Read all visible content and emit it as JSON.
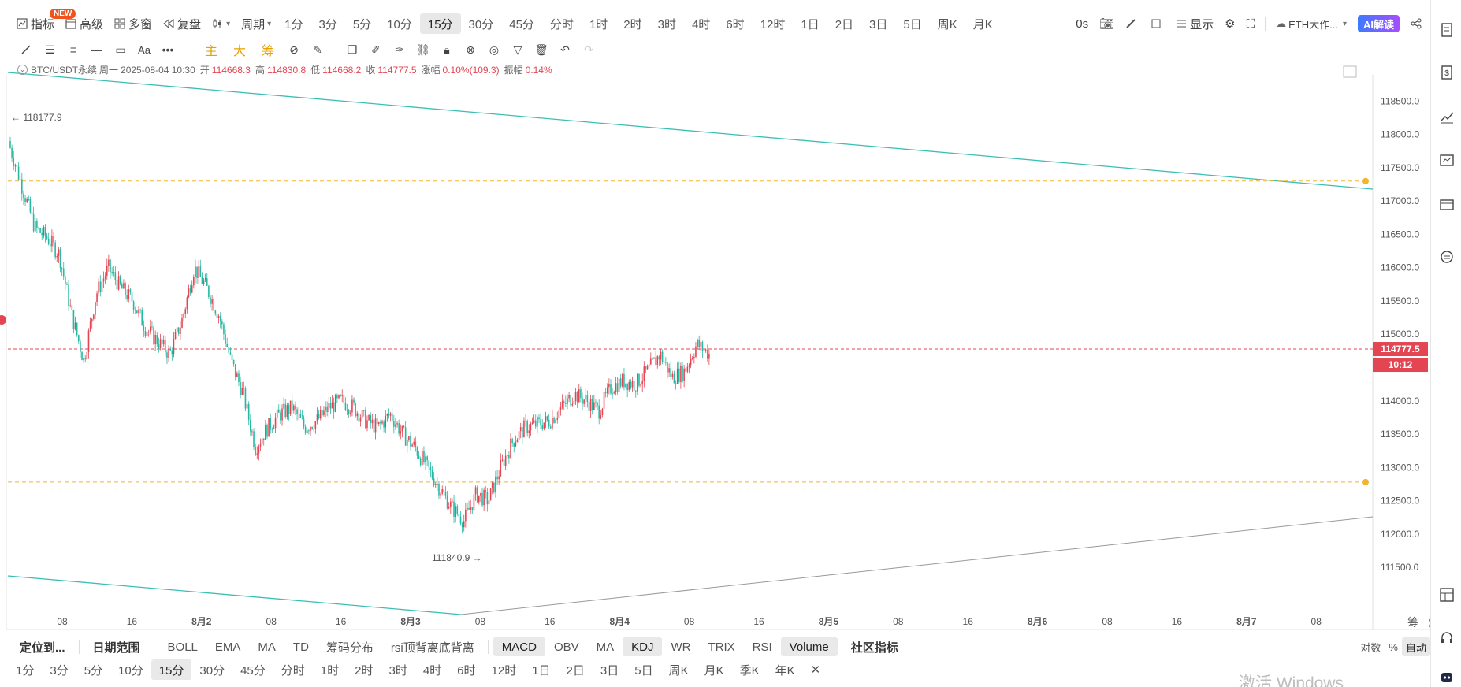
{
  "toolbar": {
    "items": [
      {
        "label": "指标",
        "icon": "indicator-icon"
      },
      {
        "label": "高级",
        "icon": "calendar-icon"
      },
      {
        "label": "多窗",
        "icon": "grid-icon"
      },
      {
        "label": "复盘",
        "icon": "rewind-icon"
      }
    ],
    "new_badge": "NEW",
    "period_menu": "周期",
    "periods": [
      "1分",
      "3分",
      "5分",
      "10分",
      "15分",
      "30分",
      "45分",
      "分时",
      "1时",
      "2时",
      "3时",
      "4时",
      "6时",
      "12时",
      "1日",
      "2日",
      "3日",
      "5日",
      "周K",
      "月K"
    ],
    "active_period": "15分",
    "countdown": "0s",
    "display_label": "显示",
    "symbol_select": "ETH大作...",
    "ai_label": "AI解读"
  },
  "drawing_tools": {
    "cn_tools": [
      "主",
      "大",
      "筹"
    ]
  },
  "info": {
    "symbol": "BTC/USDT永续",
    "weekday": "周一",
    "datetime": "2025-08-04 10:30",
    "open_label": "开",
    "open": "114668.3",
    "high_label": "高",
    "high": "114830.8",
    "low_label": "低",
    "low": "114668.2",
    "close_label": "收",
    "close": "114777.5",
    "change_label": "涨幅",
    "change": "0.10%(109.3)",
    "amp_label": "振幅",
    "amp": "0.14%"
  },
  "chart_data": {
    "type": "candlestick",
    "y_axis_ticks": [
      "118500.0",
      "118000.0",
      "117500.0",
      "117000.0",
      "116500.0",
      "116000.0",
      "115500.0",
      "115000.0",
      "114500.0",
      "114000.0",
      "113500.0",
      "113000.0",
      "112500.0",
      "112000.0",
      "111500.0"
    ],
    "ylim": [
      111300,
      118800
    ],
    "x_axis_ticks": [
      "08",
      "16",
      "8月2",
      "08",
      "16",
      "8月3",
      "08",
      "16",
      "8月4",
      "08",
      "16",
      "8月5",
      "08",
      "16",
      "8月6",
      "08",
      "16",
      "8月7",
      "08"
    ],
    "current_price": "114777.5",
    "countdown": "10:12",
    "high_marker": "118177.9",
    "low_marker": "111840.9",
    "horizontal_lines": [
      117300,
      112780
    ],
    "colors": {
      "up": "#e44552",
      "down": "#27b8a3",
      "trend": "#3bbfb5",
      "dash": "#f2b52e"
    },
    "candles_close_path": [
      117800,
      117200,
      116600,
      116450,
      116200,
      115300,
      114600,
      115600,
      116000,
      115700,
      115500,
      115100,
      114900,
      114700,
      115200,
      116000,
      115700,
      115300,
      114600,
      114100,
      113300,
      113600,
      113800,
      113900,
      113600,
      113700,
      113900,
      114000,
      113900,
      113700,
      113600,
      113800,
      113500,
      113300,
      113000,
      112700,
      112400,
      112200,
      112600,
      112500,
      113000,
      113400,
      113600,
      113650,
      113700,
      113900,
      114100,
      114000,
      113850,
      114200,
      114300,
      114250,
      114450,
      114700,
      114350,
      114450,
      114850,
      114700
    ]
  },
  "indicators": {
    "left": [
      "定位到...",
      "日期范围"
    ],
    "main": [
      "BOLL",
      "EMA",
      "MA",
      "TD",
      "筹码分布",
      "rsi顶背离底背离"
    ],
    "sub": [
      "MACD",
      "OBV",
      "MA",
      "KDJ",
      "WR",
      "TRIX",
      "RSI",
      "Volume"
    ],
    "active_sub": [
      "MACD",
      "KDJ",
      "Volume"
    ],
    "community": "社区指标",
    "scale_modes": [
      "对数",
      "%",
      "自动"
    ],
    "side_labels": [
      "筹",
      "爆"
    ]
  },
  "bottom_periods": [
    "1分",
    "3分",
    "5分",
    "10分",
    "15分",
    "30分",
    "45分",
    "分时",
    "1时",
    "2时",
    "3时",
    "4时",
    "6时",
    "12时",
    "1日",
    "2日",
    "3日",
    "5日",
    "周K",
    "月K",
    "季K",
    "年K"
  ],
  "bottom_active": "15分",
  "watermark": "激活 Windows"
}
